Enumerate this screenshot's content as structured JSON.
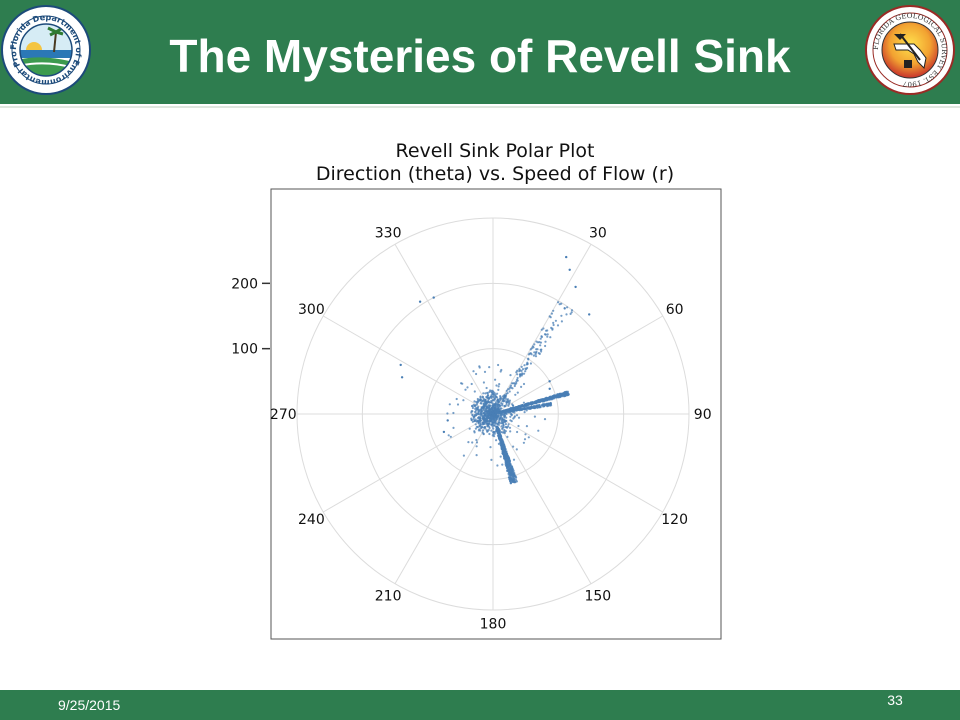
{
  "slide": {
    "title": "The Mysteries of Revell Sink",
    "date": "9/25/2015",
    "page_number": "33"
  },
  "logos": {
    "left": {
      "icon": "fdep-seal-icon",
      "text": "Florida Department of Environmental Protection"
    },
    "right": {
      "icon": "florida-geological-survey-seal-icon",
      "text": "FLORIDA GEOLOGICAL SURVEY EST. 1907"
    }
  },
  "colors": {
    "header": "#2e7d4f",
    "points": "#4a7fb5",
    "grid": "#dcdcdc"
  },
  "chart_data": {
    "type": "scatter",
    "coordinate_system": "polar",
    "title": "Revell Sink Polar Plot",
    "subtitle": "Direction (theta) vs. Speed of Flow (r)",
    "theta_direction": "clockwise",
    "theta_zero": "top",
    "theta_ticks": [
      30,
      60,
      90,
      120,
      150,
      180,
      210,
      240,
      270,
      300,
      330
    ],
    "theta_tick_labels": [
      "30",
      "60",
      "90",
      "120",
      "150",
      "180",
      "210",
      "240",
      "270",
      "300",
      "330"
    ],
    "r_ticks": [
      100,
      200
    ],
    "r_tick_labels": [
      "100",
      "200"
    ],
    "rlim": [
      0,
      300
    ],
    "grid": true,
    "clusters": [
      {
        "theta_range": [
          0,
          360
        ],
        "r_range": [
          0,
          35
        ],
        "density": "very high"
      },
      {
        "theta_range": [
          160,
          166
        ],
        "r_range": [
          20,
          110
        ],
        "density": "high"
      },
      {
        "theta_range": [
          73,
          76
        ],
        "r_range": [
          10,
          120
        ],
        "density": "high"
      },
      {
        "theta_range": [
          79,
          82
        ],
        "r_range": [
          10,
          90
        ],
        "density": "medium"
      },
      {
        "theta_range": [
          30,
          38
        ],
        "r_range": [
          30,
          200
        ],
        "density": "low"
      },
      {
        "theta_range": [
          0,
          360
        ],
        "r_range": [
          20,
          80
        ],
        "density": "sparse"
      }
    ],
    "outliers": [
      {
        "theta": 25,
        "r": 265
      },
      {
        "theta": 28,
        "r": 250
      },
      {
        "theta": 33,
        "r": 232
      },
      {
        "theta": 44,
        "r": 212
      },
      {
        "theta": 333,
        "r": 200
      },
      {
        "theta": 327,
        "r": 205
      },
      {
        "theta": 298,
        "r": 160
      },
      {
        "theta": 292,
        "r": 150
      },
      {
        "theta": 60,
        "r": 100
      },
      {
        "theta": 66,
        "r": 95
      },
      {
        "theta": 250,
        "r": 80
      },
      {
        "theta": 262,
        "r": 70
      }
    ]
  }
}
